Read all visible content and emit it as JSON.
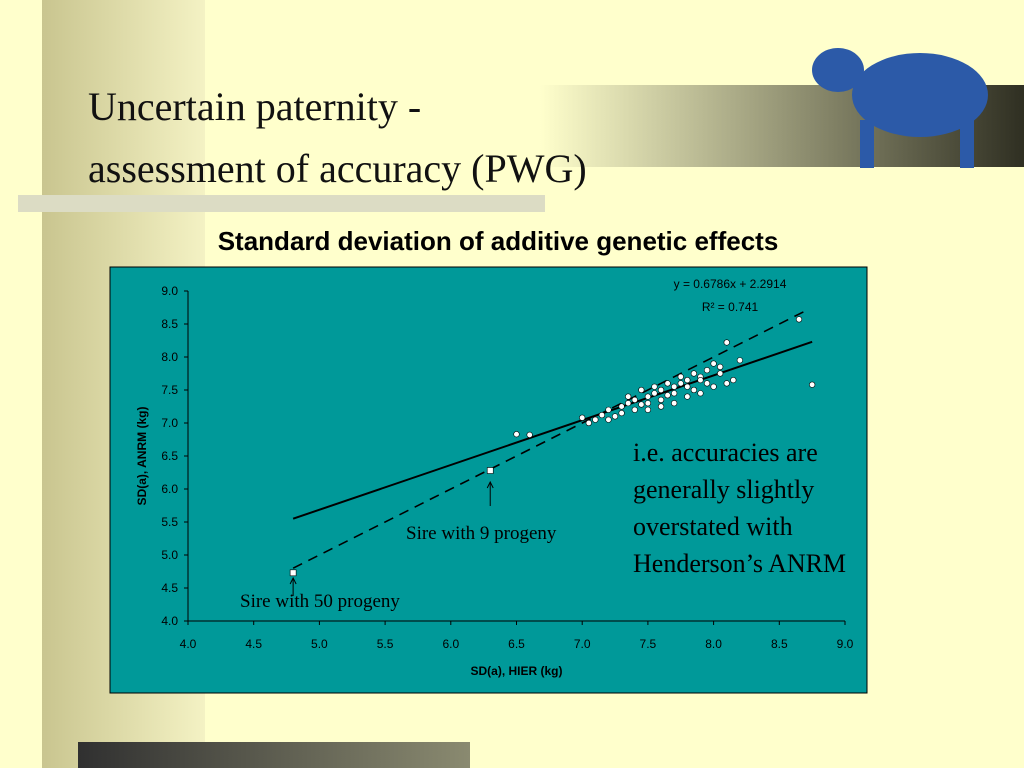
{
  "slide": {
    "title_lines": [
      "Uncertain paternity -",
      "assessment of accuracy (PWG)"
    ],
    "note_lines": [
      "i.e. accuracies are",
      "generally slightly",
      "overstated with",
      "Henderson’s ANRM"
    ]
  },
  "chart_data": {
    "type": "scatter",
    "title": "Standard deviation of additive genetic effects",
    "x_label": "SD(a), HIER  (kg)",
    "y_label": "SD(a), ANRM  (kg)",
    "xlim": [
      4,
      9
    ],
    "ylim": [
      4,
      9
    ],
    "xticks": [
      {
        "value": 4,
        "label": "4.0"
      },
      {
        "value": 4.5,
        "label": "4.5"
      },
      {
        "value": 5,
        "label": "5.0"
      },
      {
        "value": 5.5,
        "label": "5.5"
      },
      {
        "value": 6,
        "label": "6.0"
      },
      {
        "value": 6.5,
        "label": "6.5"
      },
      {
        "value": 7,
        "label": "7.0"
      },
      {
        "value": 7.5,
        "label": "7.5"
      },
      {
        "value": 8,
        "label": "8.0"
      },
      {
        "value": 8.5,
        "label": "8.5"
      },
      {
        "value": 9,
        "label": "9.0"
      }
    ],
    "yticks": [
      {
        "value": 4,
        "label": "4.0"
      },
      {
        "value": 4.5,
        "label": "4.5"
      },
      {
        "value": 5,
        "label": "5.0"
      },
      {
        "value": 5.5,
        "label": "5.5"
      },
      {
        "value": 6,
        "label": "6.0"
      },
      {
        "value": 6.5,
        "label": "6.5"
      },
      {
        "value": 7,
        "label": "7.0"
      },
      {
        "value": 7.5,
        "label": "7.5"
      },
      {
        "value": 8,
        "label": "8.0"
      },
      {
        "value": 8.5,
        "label": "8.5"
      },
      {
        "value": 9,
        "label": "9.0"
      }
    ],
    "x": [
      6.5,
      6.6,
      7.0,
      7.05,
      7.1,
      7.15,
      7.2,
      7.25,
      7.3,
      7.35,
      7.4,
      7.45,
      7.5,
      7.55,
      7.6,
      7.65,
      7.7,
      7.75,
      7.8,
      7.85,
      7.9,
      7.95,
      8.0,
      8.05,
      8.1,
      8.15,
      8.2,
      8.65,
      8.75,
      7.4,
      7.5,
      7.6,
      7.7,
      7.8,
      7.9,
      8.0,
      8.1,
      7.3,
      7.2,
      7.45,
      7.55,
      7.65,
      7.75,
      7.85,
      7.95,
      8.05,
      7.35,
      7.5,
      7.6,
      7.7,
      7.8,
      7.9
    ],
    "y": [
      6.83,
      6.82,
      7.08,
      7.0,
      7.05,
      7.12,
      7.2,
      7.1,
      7.25,
      7.3,
      7.35,
      7.28,
      7.4,
      7.45,
      7.5,
      7.42,
      7.55,
      7.6,
      7.65,
      7.5,
      7.7,
      7.6,
      7.9,
      7.75,
      8.22,
      7.65,
      7.95,
      8.57,
      7.58,
      7.2,
      7.3,
      7.35,
      7.3,
      7.4,
      7.45,
      7.55,
      7.6,
      7.15,
      7.05,
      7.5,
      7.55,
      7.6,
      7.7,
      7.75,
      7.8,
      7.85,
      7.4,
      7.2,
      7.25,
      7.45,
      7.55,
      7.65
    ],
    "highlighted": {
      "x": [
        4.8,
        6.3
      ],
      "y": [
        4.73,
        6.28
      ]
    },
    "trendline": {
      "x": [
        4.8,
        8.75
      ],
      "y": [
        5.55,
        8.23
      ],
      "equation": "y = 0.6786x + 2.2914",
      "r_squared": "R² = 0.741"
    },
    "identity_line": {
      "x": [
        4.8,
        8.7
      ],
      "y": [
        4.8,
        8.7
      ]
    },
    "annotations": [
      "Sire with 9 progeny",
      "Sire with 50 progeny"
    ]
  }
}
